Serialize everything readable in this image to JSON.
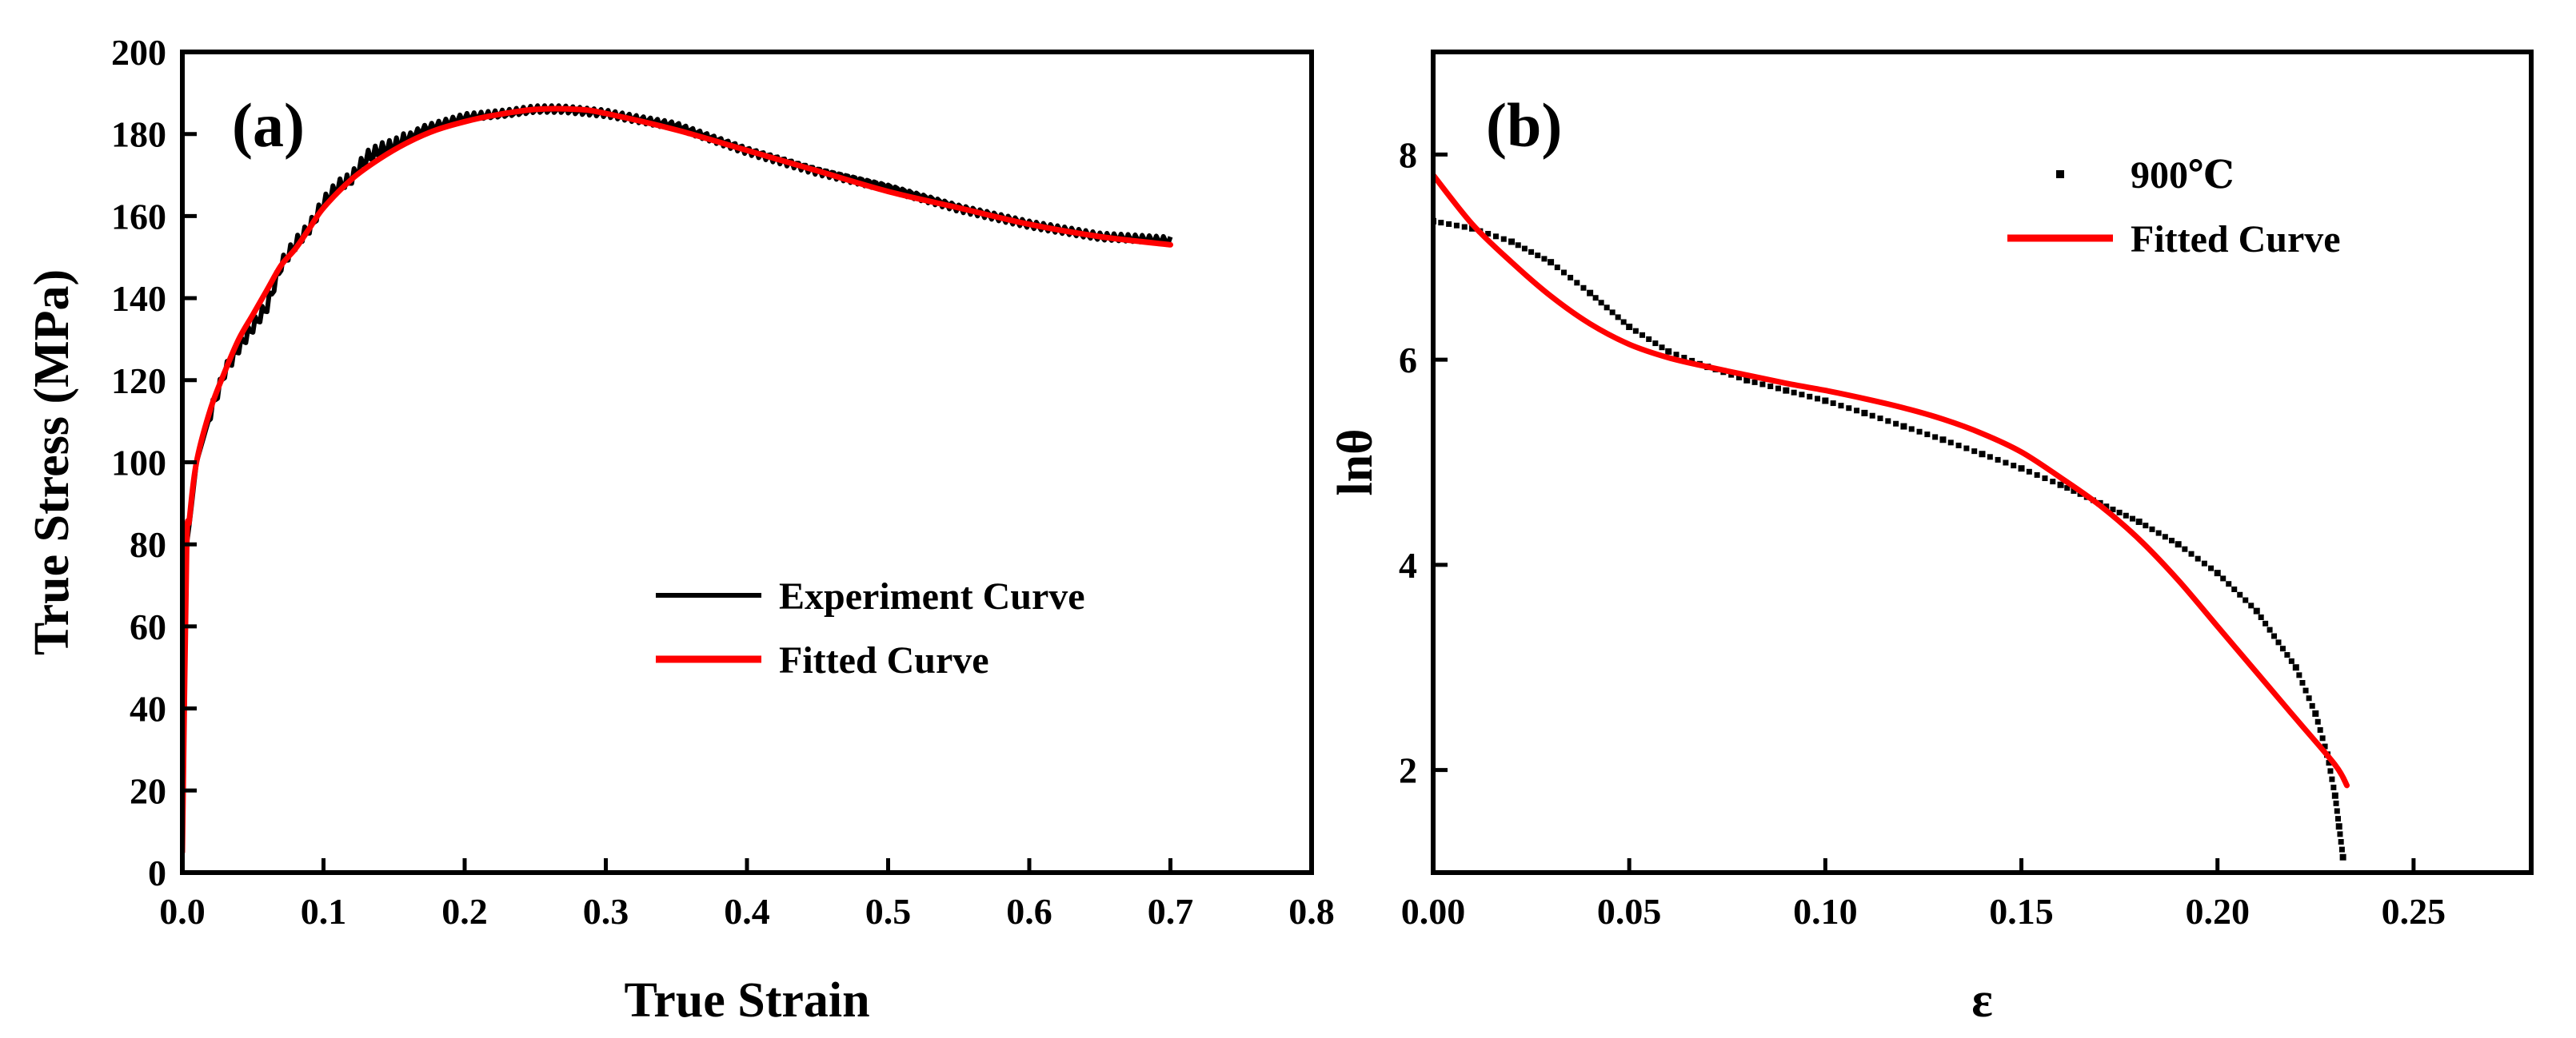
{
  "chart_data": [
    {
      "id": "a",
      "type": "line",
      "panel_label": "(a)",
      "title": "",
      "xlabel": "True Strain",
      "ylabel": "True Stress (MPa)",
      "xlim": [
        0.0,
        0.8
      ],
      "ylim": [
        0,
        200
      ],
      "xticks": [
        0.0,
        0.1,
        0.2,
        0.3,
        0.4,
        0.5,
        0.6,
        0.7,
        0.8
      ],
      "yticks": [
        0,
        20,
        40,
        60,
        80,
        100,
        120,
        140,
        160,
        180,
        200
      ],
      "xtick_labels": [
        "0.0",
        "0.1",
        "0.2",
        "0.3",
        "0.4",
        "0.5",
        "0.6",
        "0.7",
        "0.8"
      ],
      "ytick_labels": [
        "0",
        "20",
        "40",
        "60",
        "80",
        "100",
        "120",
        "140",
        "160",
        "180",
        "200"
      ],
      "grid": false,
      "legend_position": "center-right",
      "series": [
        {
          "name": "Experiment Curve",
          "color": "#000000",
          "style": "noisy-line",
          "x": [
            0.0,
            0.003,
            0.005,
            0.01,
            0.02,
            0.03,
            0.04,
            0.05,
            0.06,
            0.07,
            0.08,
            0.09,
            0.1,
            0.11,
            0.12,
            0.13,
            0.14,
            0.15,
            0.17,
            0.2,
            0.23,
            0.25,
            0.27,
            0.3,
            0.35,
            0.4,
            0.45,
            0.5,
            0.55,
            0.6,
            0.65,
            0.7
          ],
          "y": [
            5,
            80,
            85,
            100,
            112,
            122,
            128,
            133,
            138,
            148,
            153,
            157,
            163,
            167,
            169,
            174,
            176,
            177,
            181,
            184,
            185,
            186,
            186,
            185,
            182,
            176,
            171,
            167,
            162,
            158,
            155,
            154
          ]
        },
        {
          "name": "Fitted Curve",
          "color": "#ff0000",
          "style": "line",
          "x": [
            0.0,
            0.003,
            0.005,
            0.01,
            0.02,
            0.03,
            0.04,
            0.05,
            0.06,
            0.07,
            0.08,
            0.09,
            0.1,
            0.12,
            0.14,
            0.16,
            0.18,
            0.2,
            0.22,
            0.25,
            0.28,
            0.3,
            0.35,
            0.4,
            0.45,
            0.5,
            0.55,
            0.6,
            0.65,
            0.7
          ],
          "y": [
            5,
            78,
            86,
            100,
            113,
            122,
            130,
            136,
            142,
            148,
            152,
            157,
            162,
            169,
            174,
            178,
            181,
            183,
            184.5,
            186,
            186,
            185,
            181,
            176,
            171,
            166,
            162,
            158,
            155,
            153
          ]
        }
      ]
    },
    {
      "id": "b",
      "type": "scatter",
      "panel_label": "(b)",
      "title": "",
      "xlabel": "ε",
      "ylabel": "lnθ",
      "xlim": [
        0.0,
        0.28
      ],
      "ylim": [
        1.0,
        9.0
      ],
      "xticks": [
        0.0,
        0.05,
        0.1,
        0.15,
        0.2,
        0.25
      ],
      "yticks": [
        2,
        4,
        6,
        8
      ],
      "xtick_labels": [
        "0.00",
        "0.05",
        "0.10",
        "0.15",
        "0.20",
        "0.25"
      ],
      "ytick_labels": [
        "2",
        "4",
        "6",
        "8"
      ],
      "grid": false,
      "legend_position": "top-center",
      "series": [
        {
          "name": "900℃",
          "color": "#000000",
          "style": "dots",
          "x": [
            0.0,
            0.01,
            0.02,
            0.03,
            0.04,
            0.05,
            0.06,
            0.07,
            0.08,
            0.09,
            0.1,
            0.11,
            0.12,
            0.13,
            0.14,
            0.15,
            0.16,
            0.17,
            0.18,
            0.19,
            0.2,
            0.21,
            0.22,
            0.225,
            0.228,
            0.23,
            0.231,
            0.232
          ],
          "y": [
            7.35,
            7.28,
            7.15,
            6.95,
            6.65,
            6.32,
            6.08,
            5.93,
            5.8,
            5.7,
            5.6,
            5.48,
            5.35,
            5.22,
            5.08,
            4.94,
            4.78,
            4.6,
            4.42,
            4.2,
            3.92,
            3.55,
            3.0,
            2.55,
            2.15,
            1.75,
            1.45,
            1.15
          ]
        },
        {
          "name": "Fitted Curve",
          "color": "#ff0000",
          "style": "line",
          "x": [
            0.0,
            0.01,
            0.02,
            0.03,
            0.04,
            0.05,
            0.06,
            0.07,
            0.08,
            0.09,
            0.1,
            0.11,
            0.12,
            0.13,
            0.14,
            0.15,
            0.16,
            0.17,
            0.18,
            0.19,
            0.2,
            0.21,
            0.22,
            0.23,
            0.233
          ],
          "y": [
            7.8,
            7.32,
            6.95,
            6.62,
            6.35,
            6.15,
            6.02,
            5.93,
            5.85,
            5.77,
            5.7,
            5.62,
            5.53,
            5.42,
            5.28,
            5.1,
            4.85,
            4.58,
            4.25,
            3.85,
            3.4,
            2.95,
            2.5,
            2.05,
            1.85
          ]
        }
      ]
    }
  ]
}
